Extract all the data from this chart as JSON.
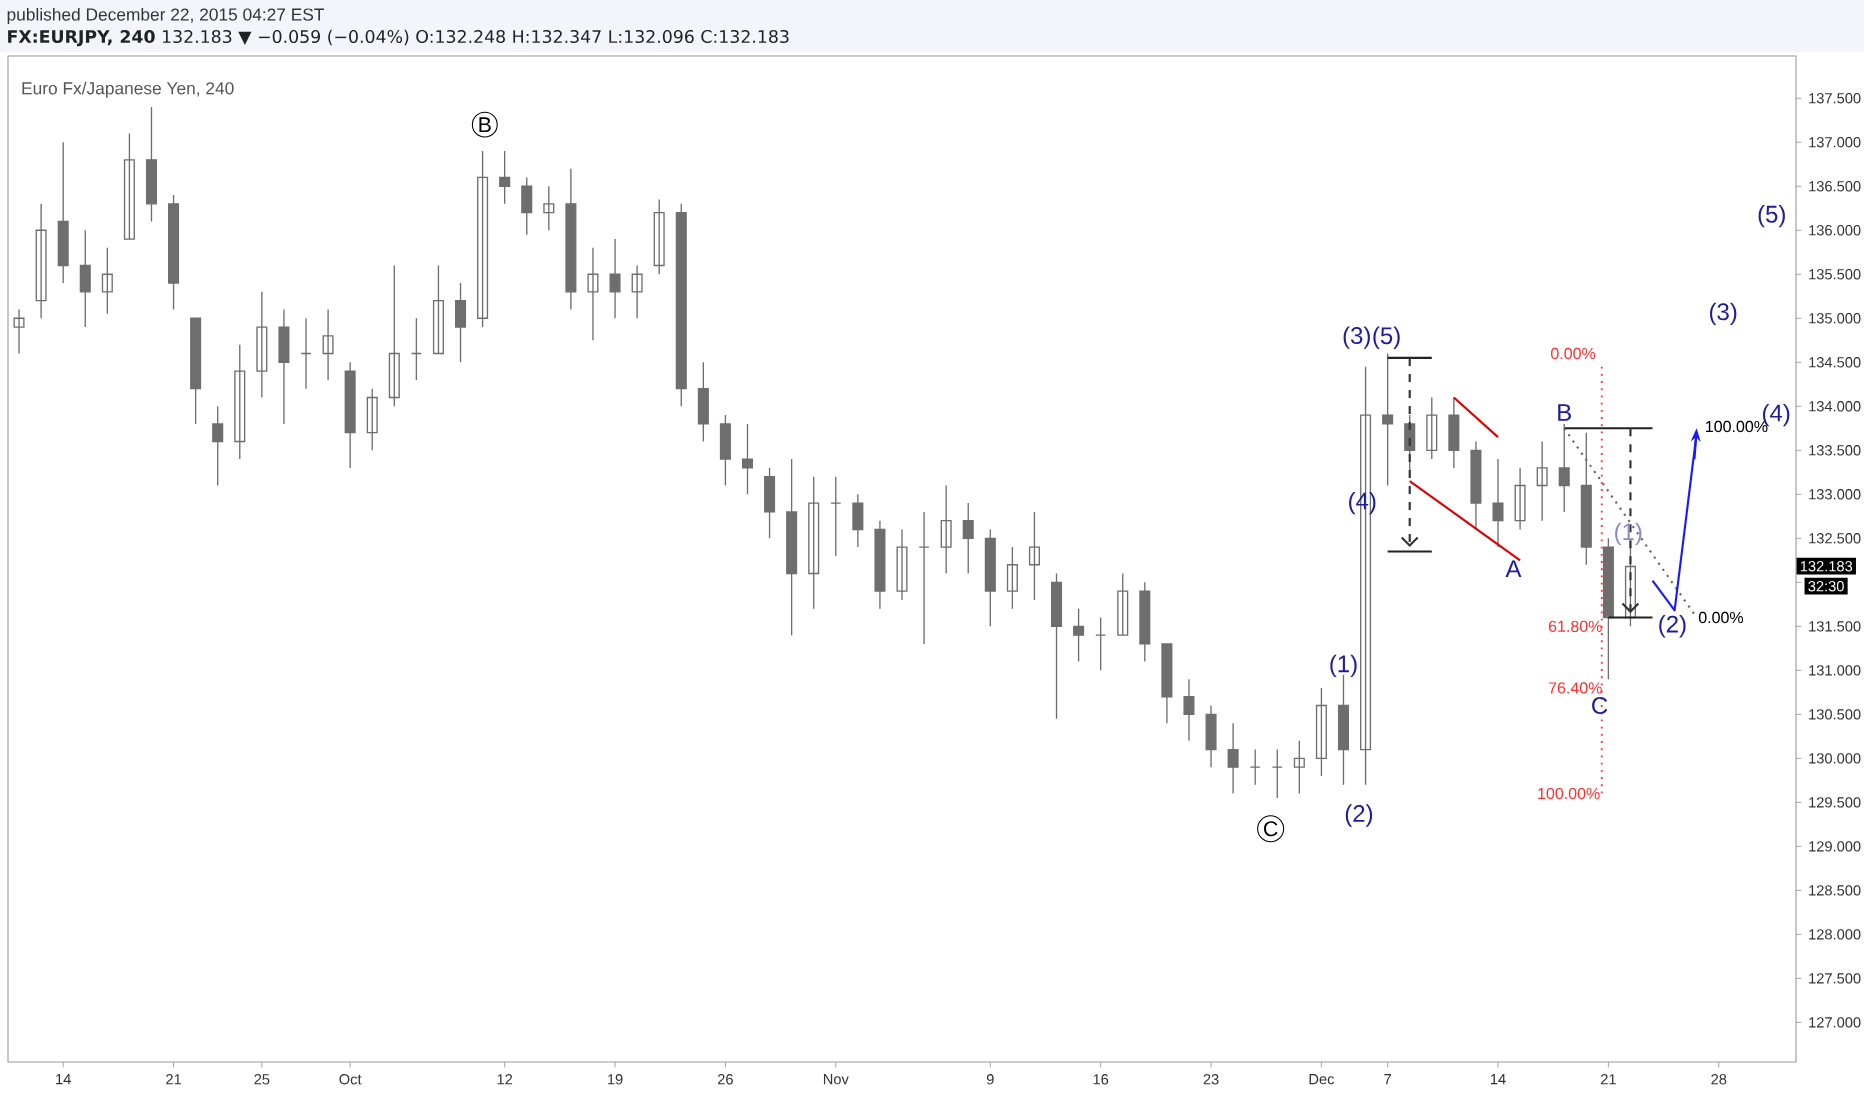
{
  "chart_data": {
    "type": "candlestick",
    "title": "Euro Fx/Japanese Yen, 240",
    "subtitle": "**FX:EURJPY, 240** 132.183 ▼ −0.059 (−0.04%) O:132.248 H:132.347 L:132.096 C:132.183",
    "color": "#6e6e6e",
    "categories": [
      null,
      null,
      "14",
      null,
      null,
      null,
      null,
      "21",
      null,
      null,
      null,
      "25",
      null,
      null,
      null,
      "Oct",
      null,
      null,
      null,
      null,
      null,
      null,
      "12",
      null,
      null,
      null,
      null,
      "19",
      null,
      null,
      null,
      null,
      "26",
      null,
      null,
      null,
      null,
      "Nov",
      null,
      null,
      null,
      null,
      null,
      null,
      "9",
      null,
      null,
      null,
      null,
      "16",
      null,
      null,
      null,
      null,
      "23",
      null,
      null,
      null,
      null,
      "Dec",
      null,
      null,
      "7",
      null,
      null,
      null,
      null,
      "14",
      null,
      null,
      null,
      null,
      "21",
      null,
      null,
      null,
      null,
      "28",
      null,
      null,
      null
    ],
    "ohlc": [
      [
        134.9,
        135.1,
        134.6,
        135.0
      ],
      [
        135.2,
        136.3,
        135.0,
        136.0
      ],
      [
        136.1,
        137.0,
        135.4,
        135.6
      ],
      [
        135.6,
        136.0,
        134.9,
        135.3
      ],
      [
        135.3,
        135.8,
        135.05,
        135.5
      ],
      [
        135.9,
        137.1,
        135.9,
        136.8
      ],
      [
        136.8,
        137.4,
        136.1,
        136.3
      ],
      [
        136.3,
        136.4,
        135.1,
        135.4
      ],
      [
        135.0,
        135.0,
        133.8,
        134.2
      ],
      [
        133.8,
        134.0,
        133.1,
        133.6
      ],
      [
        133.6,
        134.7,
        133.4,
        134.4
      ],
      [
        134.4,
        135.3,
        134.1,
        134.9
      ],
      [
        134.9,
        135.1,
        133.8,
        134.5
      ],
      [
        134.6,
        135.0,
        134.2,
        134.6
      ],
      [
        134.6,
        135.1,
        134.3,
        134.8
      ],
      [
        134.4,
        134.5,
        133.3,
        133.7
      ],
      [
        133.7,
        134.2,
        133.5,
        134.1
      ],
      [
        134.1,
        135.6,
        134.0,
        134.6
      ],
      [
        134.6,
        135.0,
        134.3,
        134.6
      ],
      [
        134.6,
        135.6,
        134.6,
        135.2
      ],
      [
        135.2,
        135.4,
        134.5,
        134.9
      ],
      [
        135.0,
        136.9,
        134.9,
        136.6
      ],
      [
        136.6,
        136.9,
        136.3,
        136.5
      ],
      [
        136.5,
        136.6,
        135.95,
        136.2
      ],
      [
        136.2,
        136.5,
        136.0,
        136.3
      ],
      [
        136.3,
        136.7,
        135.1,
        135.3
      ],
      [
        135.3,
        135.8,
        134.75,
        135.5
      ],
      [
        135.5,
        135.9,
        135.0,
        135.3
      ],
      [
        135.3,
        135.6,
        135.0,
        135.5
      ],
      [
        135.6,
        136.35,
        135.5,
        136.2
      ],
      [
        136.2,
        136.3,
        134.0,
        134.2
      ],
      [
        134.2,
        134.5,
        133.6,
        133.8
      ],
      [
        133.8,
        133.9,
        133.1,
        133.4
      ],
      [
        133.4,
        133.8,
        133.0,
        133.3
      ],
      [
        133.2,
        133.3,
        132.5,
        132.8
      ],
      [
        132.8,
        133.4,
        131.4,
        132.1
      ],
      [
        132.1,
        133.2,
        131.7,
        132.9
      ],
      [
        132.9,
        133.2,
        132.3,
        132.9
      ],
      [
        132.9,
        133.0,
        132.4,
        132.6
      ],
      [
        132.6,
        132.7,
        131.7,
        131.9
      ],
      [
        131.9,
        132.6,
        131.8,
        132.4
      ],
      [
        132.4,
        132.8,
        131.3,
        132.4
      ],
      [
        132.4,
        133.1,
        132.1,
        132.7
      ],
      [
        132.7,
        132.9,
        132.1,
        132.5
      ],
      [
        132.5,
        132.6,
        131.5,
        131.9
      ],
      [
        131.9,
        132.4,
        131.7,
        132.2
      ],
      [
        132.2,
        132.8,
        131.8,
        132.4
      ],
      [
        132.0,
        132.1,
        130.45,
        131.5
      ],
      [
        131.5,
        131.7,
        131.1,
        131.4
      ],
      [
        131.4,
        131.6,
        131.0,
        131.4
      ],
      [
        131.4,
        132.1,
        131.4,
        131.9
      ],
      [
        131.9,
        132.0,
        131.1,
        131.3
      ],
      [
        131.3,
        131.3,
        130.4,
        130.7
      ],
      [
        130.7,
        130.9,
        130.2,
        130.5
      ],
      [
        130.5,
        130.6,
        129.9,
        130.1
      ],
      [
        130.1,
        130.4,
        129.6,
        129.9
      ],
      [
        129.9,
        130.1,
        129.7,
        129.9
      ],
      [
        129.9,
        130.1,
        129.55,
        129.9
      ],
      [
        129.9,
        130.2,
        129.6,
        130.0
      ],
      [
        130.0,
        130.8,
        129.8,
        130.6
      ],
      [
        130.6,
        130.95,
        129.7,
        130.1
      ],
      [
        130.1,
        134.45,
        129.7,
        133.9
      ],
      [
        133.9,
        134.6,
        133.1,
        133.8
      ],
      [
        133.8,
        133.9,
        133.2,
        133.5
      ],
      [
        133.5,
        134.1,
        133.4,
        133.9
      ],
      [
        133.9,
        134.1,
        133.3,
        133.5
      ],
      [
        133.5,
        133.6,
        132.6,
        132.9
      ],
      [
        132.9,
        133.4,
        132.4,
        132.7
      ],
      [
        132.7,
        133.3,
        132.6,
        133.1
      ],
      [
        133.1,
        133.6,
        132.7,
        133.3
      ],
      [
        133.3,
        133.8,
        132.8,
        133.1
      ],
      [
        133.1,
        133.7,
        132.2,
        132.4
      ],
      [
        132.4,
        132.5,
        130.9,
        131.6
      ],
      [
        131.6,
        132.45,
        131.5,
        132.18
      ],
      null,
      null,
      null,
      null,
      null,
      null,
      null
    ],
    "series": [
      {
        "type": "line",
        "color": "#e00000",
        "line_style": "solid",
        "values": [
          null,
          null,
          null,
          null,
          null,
          null,
          null,
          null,
          null,
          null,
          null,
          null,
          null,
          null,
          null,
          null,
          null,
          null,
          null,
          null,
          null,
          null,
          null,
          null,
          null,
          null,
          null,
          null,
          null,
          null,
          null,
          null,
          null,
          null,
          null,
          null,
          null,
          null,
          null,
          null,
          null,
          null,
          null,
          null,
          null,
          null,
          null,
          null,
          null,
          null,
          null,
          null,
          null,
          null,
          null,
          null,
          null,
          null,
          null,
          null,
          null,
          null,
          null,
          null,
          null,
          134.1,
          null,
          133.65,
          null,
          null,
          null,
          null,
          null,
          null,
          null,
          null,
          null,
          null,
          null,
          null,
          null
        ]
      },
      {
        "type": "line",
        "color": "#e00000",
        "line_style": "solid",
        "values": [
          null,
          null,
          null,
          null,
          null,
          null,
          null,
          null,
          null,
          null,
          null,
          null,
          null,
          null,
          null,
          null,
          null,
          null,
          null,
          null,
          null,
          null,
          null,
          null,
          null,
          null,
          null,
          null,
          null,
          null,
          null,
          null,
          null,
          null,
          null,
          null,
          null,
          null,
          null,
          null,
          null,
          null,
          null,
          null,
          null,
          null,
          null,
          null,
          null,
          null,
          null,
          null,
          null,
          null,
          null,
          null,
          null,
          null,
          null,
          null,
          null,
          null,
          null,
          133.15,
          null,
          null,
          null,
          null,
          132.25,
          null,
          null,
          null,
          null,
          null,
          null,
          null,
          null,
          null,
          null,
          null,
          null
        ]
      },
      {
        "type": "line",
        "color": "#222222",
        "line_style": "solid",
        "values": [
          null,
          null,
          null,
          null,
          null,
          null,
          null,
          null,
          null,
          null,
          null,
          null,
          null,
          null,
          null,
          null,
          null,
          null,
          null,
          null,
          null,
          null,
          null,
          null,
          null,
          null,
          null,
          null,
          null,
          null,
          null,
          null,
          null,
          null,
          null,
          null,
          null,
          null,
          null,
          null,
          null,
          null,
          null,
          null,
          null,
          null,
          null,
          null,
          null,
          null,
          null,
          null,
          null,
          null,
          null,
          null,
          null,
          null,
          null,
          null,
          null,
          null,
          134.55,
          134.55,
          134.55,
          null,
          null,
          null,
          null,
          null,
          null,
          null,
          null,
          null,
          null,
          null,
          null,
          null,
          null,
          null,
          null
        ]
      },
      {
        "type": "line",
        "color": "#222222",
        "line_style": "solid",
        "values": [
          null,
          null,
          null,
          null,
          null,
          null,
          null,
          null,
          null,
          null,
          null,
          null,
          null,
          null,
          null,
          null,
          null,
          null,
          null,
          null,
          null,
          null,
          null,
          null,
          null,
          null,
          null,
          null,
          null,
          null,
          null,
          null,
          null,
          null,
          null,
          null,
          null,
          null,
          null,
          null,
          null,
          null,
          null,
          null,
          null,
          null,
          null,
          null,
          null,
          null,
          null,
          null,
          null,
          null,
          null,
          null,
          null,
          null,
          null,
          null,
          null,
          null,
          132.35,
          132.35,
          132.35,
          null,
          null,
          null,
          null,
          null,
          null,
          null,
          null,
          null,
          null,
          null,
          null,
          null,
          null,
          null,
          null
        ]
      },
      {
        "type": "line",
        "color": "#222222",
        "line_style": "solid",
        "values": [
          null,
          null,
          null,
          null,
          null,
          null,
          null,
          null,
          null,
          null,
          null,
          null,
          null,
          null,
          null,
          null,
          null,
          null,
          null,
          null,
          null,
          null,
          null,
          null,
          null,
          null,
          null,
          null,
          null,
          null,
          null,
          null,
          null,
          null,
          null,
          null,
          null,
          null,
          null,
          null,
          null,
          null,
          null,
          null,
          null,
          null,
          null,
          null,
          null,
          null,
          null,
          null,
          null,
          null,
          null,
          null,
          null,
          null,
          null,
          null,
          null,
          null,
          null,
          null,
          null,
          null,
          null,
          null,
          null,
          null,
          133.75,
          133.75,
          133.75,
          133.75,
          133.75,
          null,
          null,
          null,
          null,
          null,
          null
        ]
      },
      {
        "type": "line",
        "color": "#222222",
        "line_style": "solid",
        "values": [
          null,
          null,
          null,
          null,
          null,
          null,
          null,
          null,
          null,
          null,
          null,
          null,
          null,
          null,
          null,
          null,
          null,
          null,
          null,
          null,
          null,
          null,
          null,
          null,
          null,
          null,
          null,
          null,
          null,
          null,
          null,
          null,
          null,
          null,
          null,
          null,
          null,
          null,
          null,
          null,
          null,
          null,
          null,
          null,
          null,
          null,
          null,
          null,
          null,
          null,
          null,
          null,
          null,
          null,
          null,
          null,
          null,
          null,
          null,
          null,
          null,
          null,
          null,
          null,
          null,
          null,
          null,
          null,
          null,
          null,
          null,
          null,
          131.6,
          131.6,
          131.6,
          null,
          null,
          null,
          null,
          null,
          null
        ]
      },
      {
        "type": "line",
        "color": "#666666",
        "line_style": "dotted",
        "values": [
          null,
          null,
          null,
          null,
          null,
          null,
          null,
          null,
          null,
          null,
          null,
          null,
          null,
          null,
          null,
          null,
          null,
          null,
          null,
          null,
          null,
          null,
          null,
          null,
          null,
          null,
          null,
          null,
          null,
          null,
          null,
          null,
          null,
          null,
          null,
          null,
          null,
          null,
          null,
          null,
          null,
          null,
          null,
          null,
          null,
          null,
          null,
          null,
          null,
          null,
          null,
          null,
          null,
          null,
          null,
          null,
          null,
          null,
          null,
          null,
          null,
          null,
          null,
          null,
          null,
          null,
          null,
          null,
          null,
          null,
          133.75,
          null,
          null,
          null,
          null,
          null,
          131.6,
          null,
          null,
          null,
          null
        ]
      },
      {
        "type": "line",
        "color": "#1a1aff",
        "line_style": "solid",
        "values": [
          null,
          null,
          null,
          null,
          null,
          null,
          null,
          null,
          null,
          null,
          null,
          null,
          null,
          null,
          null,
          null,
          null,
          null,
          null,
          null,
          null,
          null,
          null,
          null,
          null,
          null,
          null,
          null,
          null,
          null,
          null,
          null,
          null,
          null,
          null,
          null,
          null,
          null,
          null,
          null,
          null,
          null,
          null,
          null,
          null,
          null,
          null,
          null,
          null,
          null,
          null,
          null,
          null,
          null,
          null,
          null,
          null,
          null,
          null,
          null,
          null,
          null,
          null,
          null,
          null,
          null,
          null,
          null,
          null,
          null,
          null,
          null,
          null,
          null,
          132.02,
          131.68,
          133.7,
          null,
          null,
          null,
          null
        ]
      }
    ],
    "ylim": [
      126.55,
      137.98
    ],
    "yticks": [
      {
        "value": 127,
        "label": "127.000"
      },
      {
        "value": 127.5,
        "label": "127.500"
      },
      {
        "value": 128,
        "label": "128.000"
      },
      {
        "value": 128.5,
        "label": "128.500"
      },
      {
        "value": 129,
        "label": "129.000"
      },
      {
        "value": 129.5,
        "label": "129.500"
      },
      {
        "value": 130,
        "label": "130.000"
      },
      {
        "value": 130.5,
        "label": "130.500"
      },
      {
        "value": 131,
        "label": "131.000"
      },
      {
        "value": 131.5,
        "label": "131.500"
      },
      {
        "value": 132,
        "label": null
      },
      {
        "value": 132.5,
        "label": "132.500"
      },
      {
        "value": 133,
        "label": "133.000"
      },
      {
        "value": 133.5,
        "label": "133.500"
      },
      {
        "value": 134,
        "label": "134.000"
      },
      {
        "value": 134.5,
        "label": "134.500"
      },
      {
        "value": 135,
        "label": "135.000"
      },
      {
        "value": 135.5,
        "label": "135.500"
      },
      {
        "value": 136,
        "label": "136.000"
      },
      {
        "value": 136.5,
        "label": "136.500"
      },
      {
        "value": 137,
        "label": "137.000"
      },
      {
        "value": 137.5,
        "label": "137.500"
      }
    ],
    "annotations": [
      "published December 22, 2015 04:27 EST",
      "132.183",
      "32:30",
      "B",
      "C",
      "(1)",
      "(2)",
      "(3)",
      {
        "text": "(5)",
        "y": 134.6
      },
      "(4)",
      {
        "text": "A",
        "y": 132.3
      },
      "B",
      "C",
      "(1)",
      {
        "text": "(2)",
        "y": 131.68
      },
      "(3)",
      "(5)",
      "(4)",
      "0.00%",
      "61.80%",
      "76.40%",
      "100.00%",
      "100.00%",
      "0.00%"
    ]
  }
}
